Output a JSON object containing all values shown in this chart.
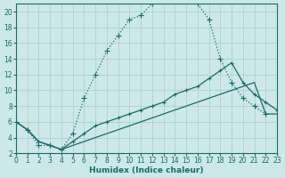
{
  "xlabel": "Humidex (Indice chaleur)",
  "bg_color": "#cce8e8",
  "line_color": "#1a6b6b",
  "grid_color": "#aacccc",
  "xlim": [
    0,
    23
  ],
  "ylim": [
    2,
    21
  ],
  "xticks": [
    0,
    1,
    2,
    3,
    4,
    5,
    6,
    7,
    8,
    9,
    10,
    11,
    12,
    13,
    14,
    15,
    16,
    17,
    18,
    19,
    20,
    21,
    22,
    23
  ],
  "yticks": [
    2,
    4,
    6,
    8,
    10,
    12,
    14,
    16,
    18,
    20
  ],
  "curve1_x": [
    0,
    1,
    2,
    3,
    4,
    5,
    6,
    7,
    8,
    9,
    10,
    11,
    12,
    13,
    14,
    15,
    16,
    17,
    18,
    19,
    20,
    21,
    22
  ],
  "curve1_y": [
    6.0,
    5.0,
    3.0,
    3.0,
    2.5,
    4.5,
    9.0,
    12.0,
    15.0,
    17.0,
    19.0,
    19.5,
    21.0,
    21.5,
    21.5,
    21.5,
    21.0,
    19.0,
    14.0,
    11.0,
    9.0,
    8.0,
    7.0
  ],
  "curve2_x": [
    0,
    1,
    2,
    3,
    4,
    5,
    6,
    7,
    8,
    9,
    10,
    11,
    12,
    13,
    14,
    15,
    16,
    17,
    18,
    19,
    20,
    21,
    22,
    23
  ],
  "curve2_y": [
    6.0,
    5.0,
    3.5,
    3.0,
    2.5,
    3.5,
    4.5,
    5.5,
    6.0,
    6.5,
    7.0,
    7.5,
    8.0,
    8.5,
    9.5,
    10.0,
    10.5,
    11.5,
    12.5,
    13.5,
    11.0,
    9.5,
    8.5,
    7.5
  ],
  "curve3_x": [
    0,
    1,
    2,
    3,
    4,
    5,
    6,
    7,
    8,
    9,
    10,
    11,
    12,
    13,
    14,
    15,
    16,
    17,
    18,
    19,
    20,
    21,
    22,
    23
  ],
  "curve3_y": [
    6.0,
    5.0,
    3.5,
    3.0,
    2.5,
    3.0,
    3.5,
    4.0,
    4.5,
    5.0,
    5.5,
    6.0,
    6.5,
    7.0,
    7.5,
    8.0,
    8.5,
    9.0,
    9.5,
    10.0,
    10.5,
    11.0,
    7.0,
    7.0
  ]
}
